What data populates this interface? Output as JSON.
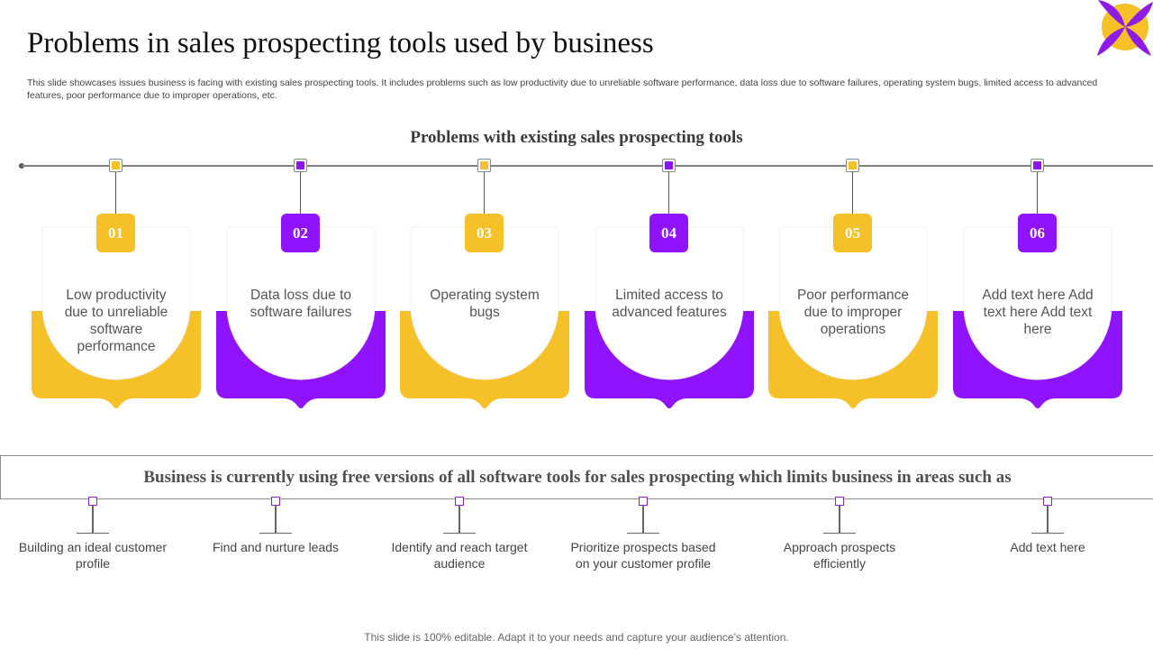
{
  "header": {
    "title": "Problems in sales prospecting tools used by business",
    "description": "This slide showcases issues business is facing with existing sales prospecting tools. It includes problems such as low productivity due to unreliable software performance, data loss due to software failures, operating system bugs, limited access to advanced features, poor performance due to improper operations, etc."
  },
  "section_title": "Problems with existing sales prospecting tools",
  "colors": {
    "yellow": "#F5C028",
    "purple": "#9013FE",
    "logo_yellow": "#F5C028",
    "logo_purple": "#8E1BE8"
  },
  "problems": [
    {
      "num": "01",
      "text": "Low productivity due to unreliable software performance",
      "color": "yellow"
    },
    {
      "num": "02",
      "text": "Data loss due to software failures",
      "color": "purple"
    },
    {
      "num": "03",
      "text": "Operating system bugs",
      "color": "yellow"
    },
    {
      "num": "04",
      "text": "Limited access to advanced features",
      "color": "purple"
    },
    {
      "num": "05",
      "text": "Poor performance due to improper operations",
      "color": "yellow"
    },
    {
      "num": "06",
      "text": "Add text here Add text here Add text here",
      "color": "purple"
    }
  ],
  "banner": "Business is currently using free versions of all software tools for sales prospecting which limits business in areas such as",
  "areas": [
    {
      "text": "Building an ideal customer profile"
    },
    {
      "text": "Find and nurture leads"
    },
    {
      "text": "Identify and reach target audience"
    },
    {
      "text": "Prioritize prospects based on your customer profile"
    },
    {
      "text": "Approach prospects efficiently"
    },
    {
      "text": "Add text here"
    }
  ],
  "footer": "This slide is 100% editable. Adapt it to your needs and capture your audience’s attention."
}
